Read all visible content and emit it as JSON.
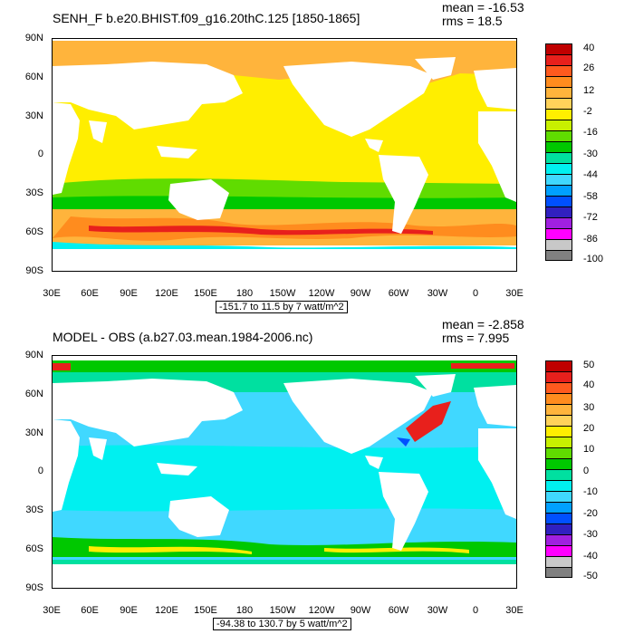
{
  "top": {
    "title": "SENH_F b.e20.BHIST.f09_g16.20thC.125 [1850-1865]",
    "mean": "mean = -16.53",
    "rms": "rms = 18.5",
    "range": "-151.7 to 11.5 by 7 watt/m^2",
    "colorbar_labels": [
      "40",
      "26",
      "12",
      "-2",
      "-16",
      "-30",
      "-44",
      "-58",
      "-72",
      "-86",
      "-100"
    ],
    "colorbar_colors": [
      "#c00000",
      "#e8201c",
      "#ff5a1e",
      "#ff8c1e",
      "#ffb43c",
      "#ffd25a",
      "#ffee00",
      "#c8f000",
      "#60dc00",
      "#00c800",
      "#00e0a0",
      "#00f0f0",
      "#40d8ff",
      "#00a0ff",
      "#0050ff",
      "#3020c0",
      "#a020e0",
      "#ff00ff",
      "#c8c8c8",
      "#808080"
    ]
  },
  "bottom": {
    "title": "MODEL - OBS (a.b27.03.mean.1984-2006.nc)",
    "mean": "mean = -2.858",
    "rms": "rms = 7.995",
    "range": "-94.38 to 130.7 by 5 watt/m^2",
    "colorbar_labels": [
      "50",
      "40",
      "30",
      "20",
      "10",
      "0",
      "-10",
      "-20",
      "-30",
      "-40",
      "-50"
    ],
    "colorbar_colors": [
      "#c00000",
      "#e8201c",
      "#ff5a1e",
      "#ff8c1e",
      "#ffb43c",
      "#ffd25a",
      "#ffee00",
      "#c8f000",
      "#60dc00",
      "#00c800",
      "#00e0a0",
      "#00f0f0",
      "#40d8ff",
      "#00a0ff",
      "#0050ff",
      "#3020c0",
      "#a020e0",
      "#ff00ff",
      "#c8c8c8",
      "#808080"
    ]
  },
  "axes": {
    "lat_labels": [
      "90N",
      "60N",
      "30N",
      "0",
      "30S",
      "60S",
      "90S"
    ],
    "lon_labels": [
      "30E",
      "60E",
      "90E",
      "120E",
      "150E",
      "180",
      "150W",
      "120W",
      "90W",
      "60W",
      "30W",
      "0",
      "30E"
    ]
  }
}
